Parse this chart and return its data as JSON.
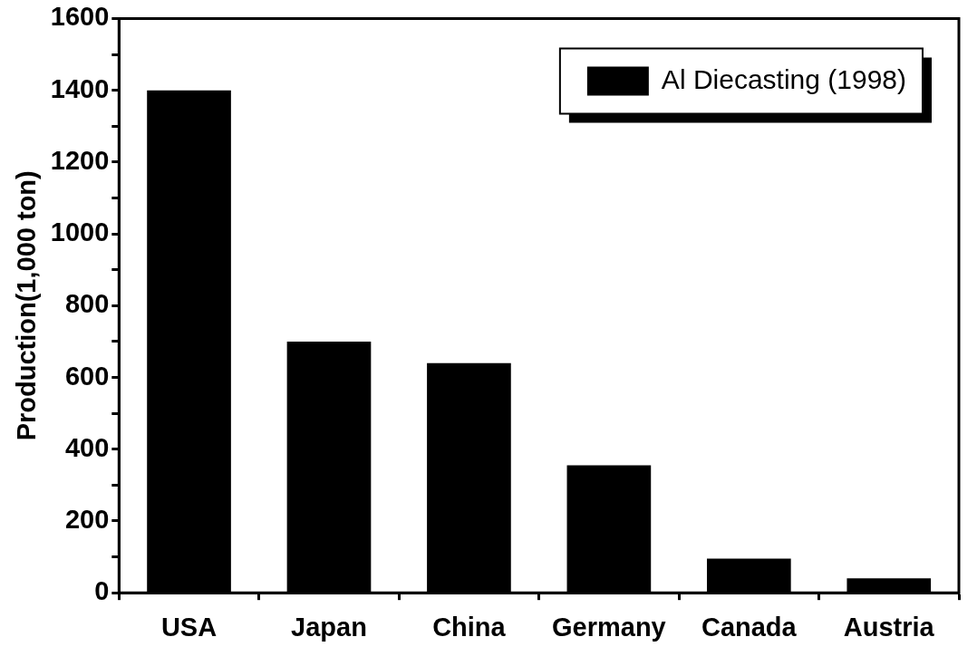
{
  "chart_data": {
    "type": "bar",
    "ylabel": "Production(1,000 ton)",
    "categories": [
      "USA",
      "Japan",
      "China",
      "Germany",
      "Canada",
      "Austria"
    ],
    "series": [
      {
        "name": "Al Diecasting (1998)",
        "color": "#000000",
        "values": [
          1400,
          700,
          640,
          355,
          95,
          40
        ]
      }
    ],
    "ylim": [
      0,
      1600
    ],
    "yticks": [
      0,
      {
        "value": 100,
        "label": null
      },
      200,
      {
        "value": 300,
        "label": null
      },
      400,
      {
        "value": 500,
        "label": null
      },
      600,
      {
        "value": 700,
        "label": null
      },
      800,
      {
        "value": 900,
        "label": null
      },
      1000,
      {
        "value": 1100,
        "label": null
      },
      1200,
      {
        "value": 1300,
        "label": null
      },
      1400,
      {
        "value": 1500,
        "label": null
      },
      1600
    ],
    "grid": false,
    "legend": "top right"
  }
}
